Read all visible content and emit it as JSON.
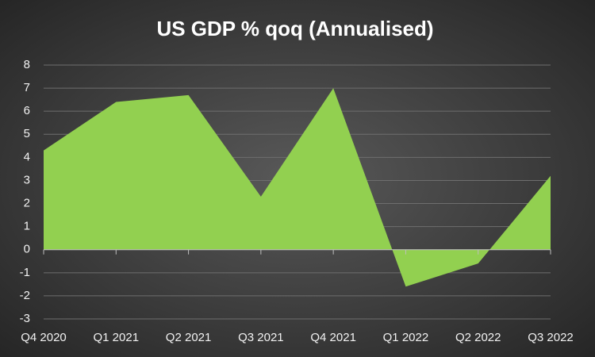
{
  "chart_data": {
    "type": "area",
    "title": "US GDP % qoq (Annualised)",
    "categories": [
      "Q4 2020",
      "Q1 2021",
      "Q2 2021",
      "Q3 2021",
      "Q4 2021",
      "Q1 2022",
      "Q2 2022",
      "Q3 2022"
    ],
    "values": [
      4.3,
      6.4,
      6.7,
      2.3,
      7.0,
      -1.6,
      -0.6,
      3.2
    ],
    "color": "#92d050",
    "ylim": [
      -3,
      8
    ],
    "yticks": [
      -3,
      -2,
      -1,
      0,
      1,
      2,
      3,
      4,
      5,
      6,
      7,
      8
    ],
    "grid": true
  }
}
